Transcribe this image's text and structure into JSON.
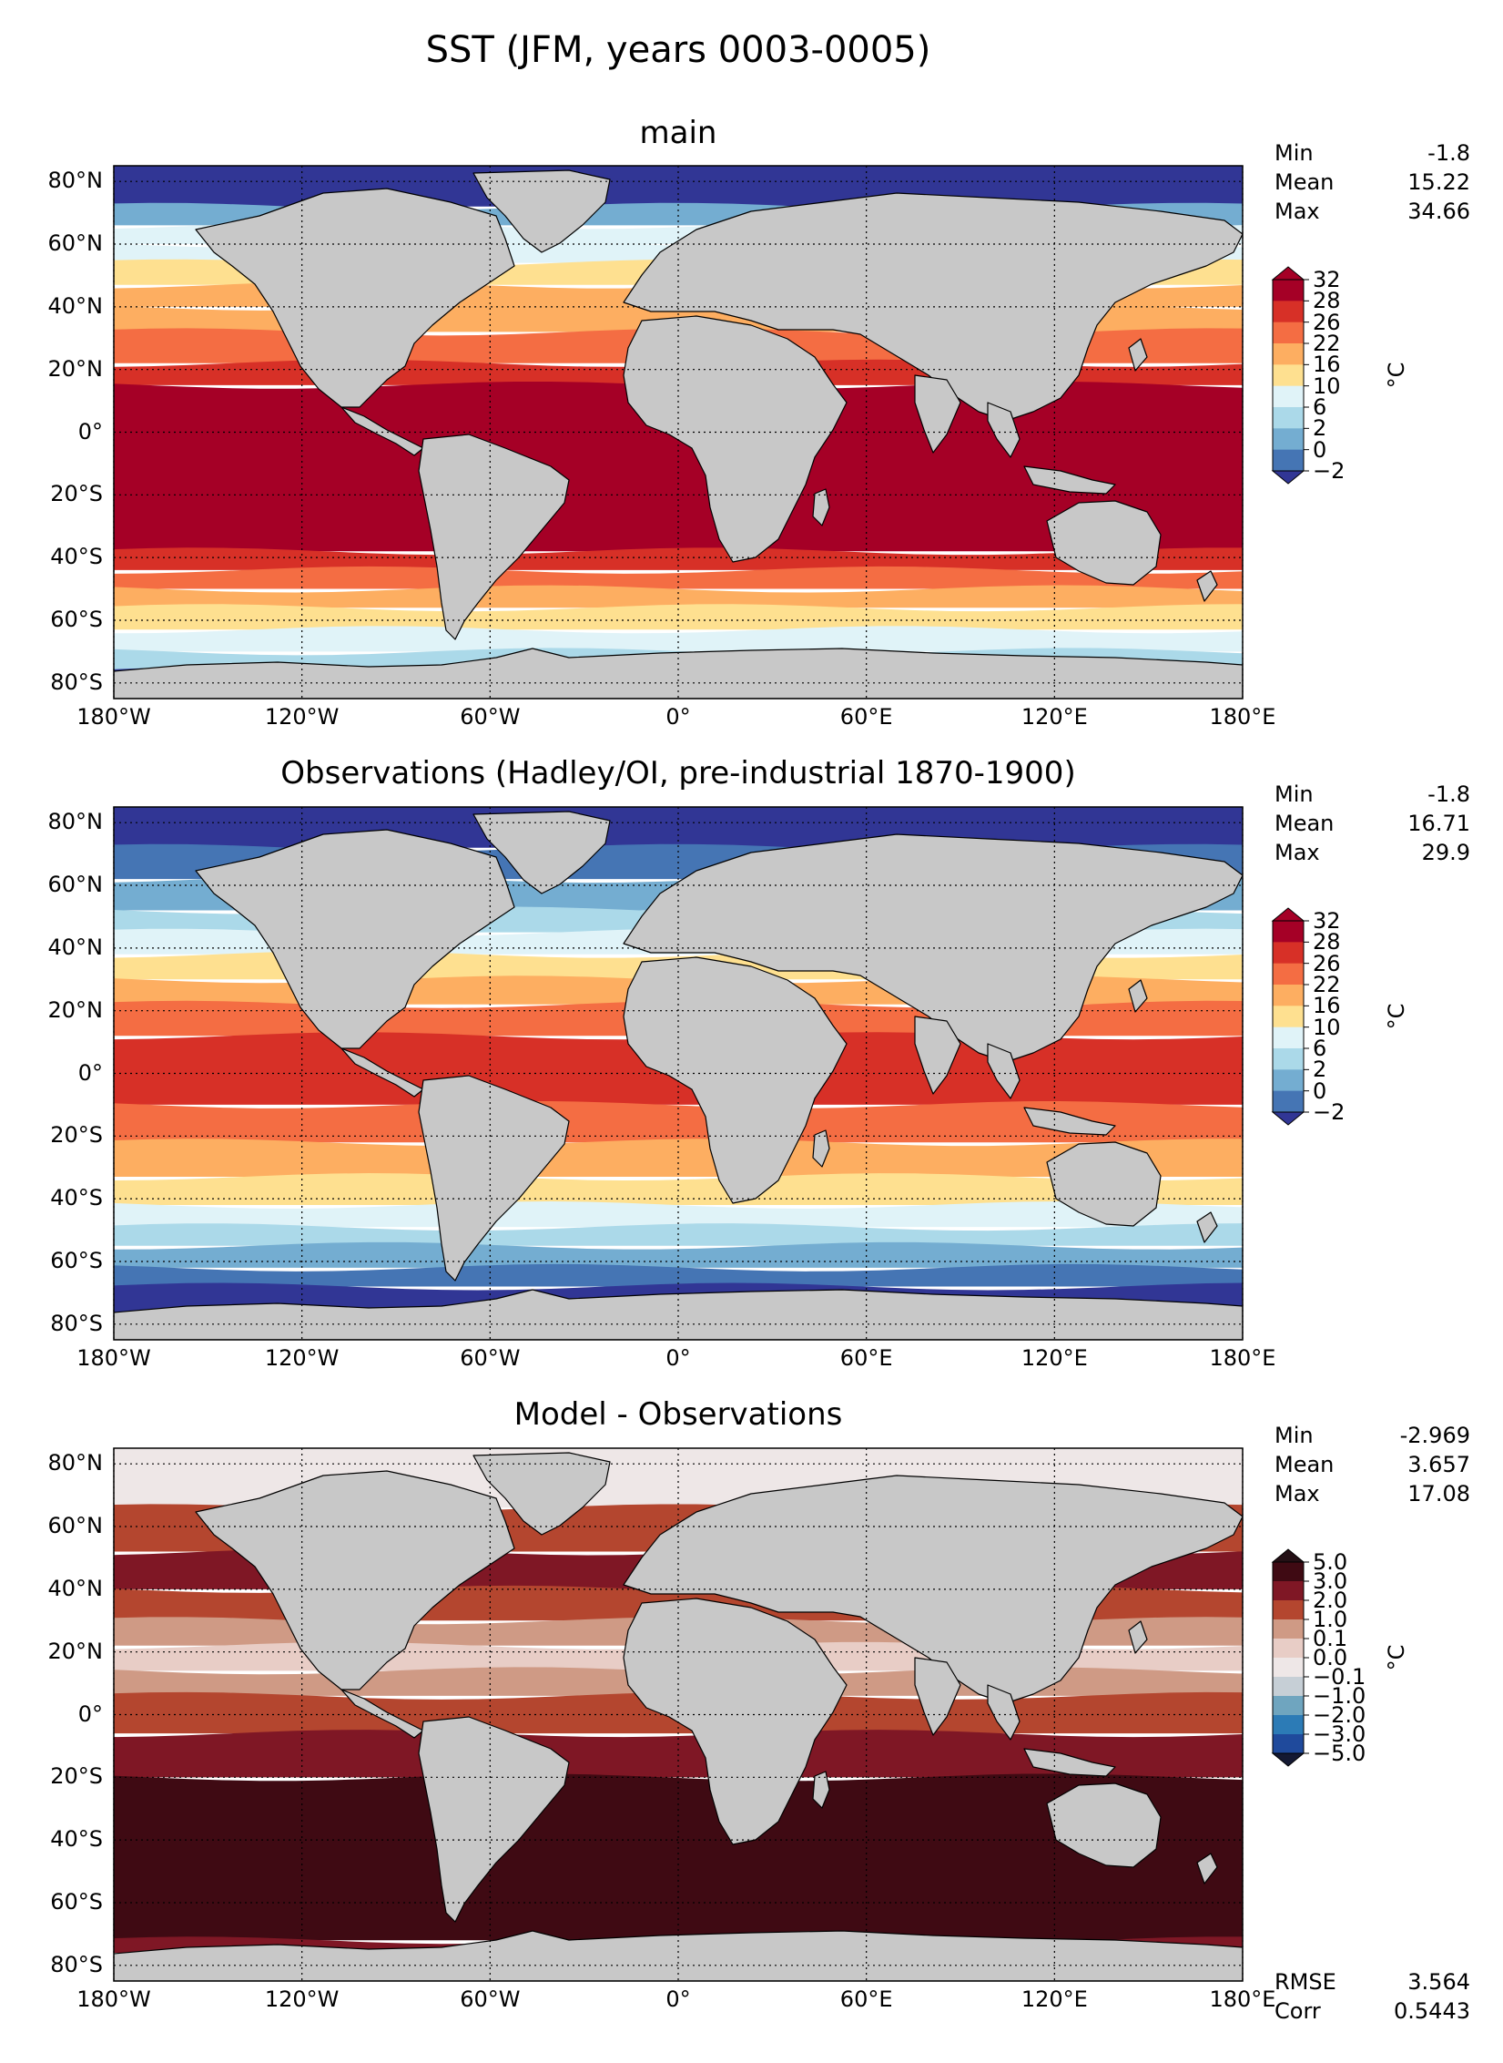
{
  "figure_title": "SST (JFM, years 0003-0005)",
  "lat_labels": [
    "80°N",
    "60°N",
    "40°N",
    "20°N",
    "0°",
    "20°S",
    "40°S",
    "60°S",
    "80°S"
  ],
  "lon_labels": [
    "180°W",
    "120°W",
    "60°W",
    "0°",
    "60°E",
    "120°E",
    "180°E"
  ],
  "colors": {
    "land": "#c8c8c8",
    "sst_levels": [
      "#313695",
      "#4575b4",
      "#74add1",
      "#abd9e9",
      "#e0f3f8",
      "#fee090",
      "#fdae61",
      "#f46d43",
      "#d73027",
      "#a50026"
    ],
    "diff_levels": [
      "#1a1f4d",
      "#1f4a9c",
      "#2c7bb6",
      "#6fa5bf",
      "#c6cfd6",
      "#eee7e7",
      "#e8cdc6",
      "#cf9a85",
      "#b4462f",
      "#7f1725",
      "#3f0a13"
    ]
  },
  "chart_data": [
    {
      "type": "heatmap",
      "title": "main",
      "lon_range": [
        -180,
        180
      ],
      "lat_range": [
        -85,
        85
      ],
      "stats": [
        {
          "label": "Min",
          "value": "-1.8"
        },
        {
          "label": "Mean",
          "value": "15.22"
        },
        {
          "label": "Max",
          "value": "34.66"
        }
      ],
      "colorbar": {
        "ticks": [
          "32",
          "28",
          "26",
          "22",
          "16",
          "10",
          "6",
          "2",
          "0",
          "−2"
        ],
        "units": "°C",
        "extend": "both"
      },
      "bands": [
        {
          "lat0": 85,
          "lat1": 72,
          "level": 0
        },
        {
          "lat0": 72,
          "lat1": 66,
          "level": 2
        },
        {
          "lat0": 66,
          "lat1": 60,
          "level": 4
        },
        {
          "lat0": 60,
          "lat1": 54,
          "level": 4
        },
        {
          "lat0": 54,
          "lat1": 47,
          "level": 5
        },
        {
          "lat0": 47,
          "lat1": 40,
          "level": 6
        },
        {
          "lat0": 40,
          "lat1": 32,
          "level": 6
        },
        {
          "lat0": 32,
          "lat1": 22,
          "level": 7
        },
        {
          "lat0": 22,
          "lat1": 15,
          "level": 8
        },
        {
          "lat0": 15,
          "lat1": -38,
          "level": 9
        },
        {
          "lat0": -38,
          "lat1": -44,
          "level": 8
        },
        {
          "lat0": -44,
          "lat1": -50,
          "level": 7
        },
        {
          "lat0": -50,
          "lat1": -56,
          "level": 6
        },
        {
          "lat0": -56,
          "lat1": -63,
          "level": 5
        },
        {
          "lat0": -63,
          "lat1": -70,
          "level": 4
        },
        {
          "lat0": -70,
          "lat1": -76,
          "level": 3
        },
        {
          "lat0": -76,
          "lat1": -85,
          "level": 0
        }
      ]
    },
    {
      "type": "heatmap",
      "title": "Observations (Hadley/OI, pre-industrial 1870-1900)",
      "lon_range": [
        -180,
        180
      ],
      "lat_range": [
        -85,
        85
      ],
      "stats": [
        {
          "label": "Min",
          "value": "-1.8"
        },
        {
          "label": "Mean",
          "value": "16.71"
        },
        {
          "label": "Max",
          "value": "29.9"
        }
      ],
      "colorbar": {
        "ticks": [
          "32",
          "28",
          "26",
          "22",
          "16",
          "10",
          "6",
          "2",
          "0",
          "−2"
        ],
        "units": "°C",
        "extend": "both"
      },
      "bands": [
        {
          "lat0": 85,
          "lat1": 72,
          "level": 0
        },
        {
          "lat0": 72,
          "lat1": 62,
          "level": 1
        },
        {
          "lat0": 62,
          "lat1": 52,
          "level": 2
        },
        {
          "lat0": 52,
          "lat1": 45,
          "level": 3
        },
        {
          "lat0": 45,
          "lat1": 38,
          "level": 4
        },
        {
          "lat0": 38,
          "lat1": 30,
          "level": 5
        },
        {
          "lat0": 30,
          "lat1": 22,
          "level": 6
        },
        {
          "lat0": 22,
          "lat1": 12,
          "level": 7
        },
        {
          "lat0": 12,
          "lat1": -10,
          "level": 8
        },
        {
          "lat0": -10,
          "lat1": -22,
          "level": 7
        },
        {
          "lat0": -22,
          "lat1": -33,
          "level": 6
        },
        {
          "lat0": -33,
          "lat1": -42,
          "level": 5
        },
        {
          "lat0": -42,
          "lat1": -49,
          "level": 4
        },
        {
          "lat0": -49,
          "lat1": -55,
          "level": 3
        },
        {
          "lat0": -55,
          "lat1": -62,
          "level": 2
        },
        {
          "lat0": -62,
          "lat1": -68,
          "level": 1
        },
        {
          "lat0": -68,
          "lat1": -85,
          "level": 0
        }
      ]
    },
    {
      "type": "heatmap",
      "title": "Model - Observations",
      "lon_range": [
        -180,
        180
      ],
      "lat_range": [
        -85,
        85
      ],
      "stats": [
        {
          "label": "Min",
          "value": "-2.969"
        },
        {
          "label": "Mean",
          "value": "3.657"
        },
        {
          "label": "Max",
          "value": "17.08"
        }
      ],
      "stats_bottom": [
        {
          "label": "RMSE",
          "value": "3.564"
        },
        {
          "label": "Corr",
          "value": "0.5443"
        }
      ],
      "colorbar": {
        "ticks": [
          "5.0",
          "3.0",
          "2.0",
          "1.0",
          "0.1",
          "0.0",
          "−0.1",
          "−1.0",
          "−2.0",
          "−3.0",
          "−5.0"
        ],
        "units": "°C",
        "extend": "both"
      },
      "bands": [
        {
          "lat0": 85,
          "lat1": 66,
          "level": 5
        },
        {
          "lat0": 66,
          "lat1": 52,
          "level": 8
        },
        {
          "lat0": 52,
          "lat1": 40,
          "level": 9
        },
        {
          "lat0": 40,
          "lat1": 30,
          "level": 8
        },
        {
          "lat0": 30,
          "lat1": 22,
          "level": 7
        },
        {
          "lat0": 22,
          "lat1": 14,
          "level": 6
        },
        {
          "lat0": 14,
          "lat1": 6,
          "level": 7
        },
        {
          "lat0": 6,
          "lat1": -6,
          "level": 8
        },
        {
          "lat0": -6,
          "lat1": -20,
          "level": 9
        },
        {
          "lat0": -20,
          "lat1": -72,
          "level": 10
        },
        {
          "lat0": -72,
          "lat1": -76,
          "level": 9
        },
        {
          "lat0": -76,
          "lat1": -85,
          "level": 5
        }
      ]
    }
  ]
}
